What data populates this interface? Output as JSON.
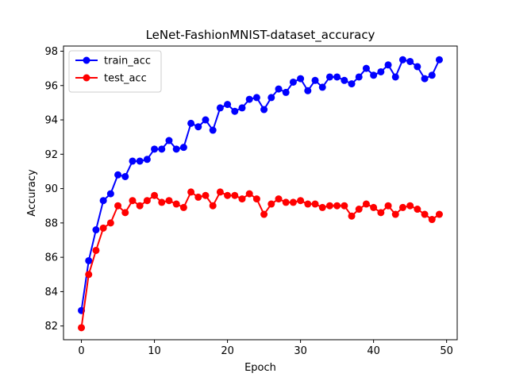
{
  "chart_data": {
    "type": "line",
    "title": "LeNet-FashionMNIST-dataset_accuracy",
    "xlabel": "Epoch",
    "ylabel": "Accuracy",
    "xlim": [
      -2.45,
      51.45
    ],
    "ylim": [
      81.2,
      98.3
    ],
    "xticks": [
      0,
      10,
      20,
      30,
      40,
      50
    ],
    "yticks": [
      82,
      84,
      86,
      88,
      90,
      92,
      94,
      96,
      98
    ],
    "grid": false,
    "legend_position": "upper-left",
    "x": [
      0,
      1,
      2,
      3,
      4,
      5,
      6,
      7,
      8,
      9,
      10,
      11,
      12,
      13,
      14,
      15,
      16,
      17,
      18,
      19,
      20,
      21,
      22,
      23,
      24,
      25,
      26,
      27,
      28,
      29,
      30,
      31,
      32,
      33,
      34,
      35,
      36,
      37,
      38,
      39,
      40,
      41,
      42,
      43,
      44,
      45,
      46,
      47,
      48,
      49
    ],
    "series": [
      {
        "name": "train_acc",
        "color": "#0000ff",
        "marker": "circle",
        "values": [
          82.9,
          85.8,
          87.6,
          89.3,
          89.7,
          90.8,
          90.7,
          91.6,
          91.6,
          91.7,
          92.3,
          92.3,
          92.8,
          92.3,
          92.4,
          93.8,
          93.6,
          94.0,
          93.4,
          94.7,
          94.9,
          94.5,
          94.7,
          95.2,
          95.3,
          94.6,
          95.3,
          95.8,
          95.6,
          96.2,
          96.4,
          95.7,
          96.3,
          95.9,
          96.5,
          96.5,
          96.3,
          96.1,
          96.5,
          97.0,
          96.6,
          96.8,
          97.2,
          96.5,
          97.5,
          97.4,
          97.1,
          96.4,
          96.6,
          97.5
        ]
      },
      {
        "name": "test_acc",
        "color": "#ff0000",
        "marker": "circle",
        "values": [
          81.9,
          85.0,
          86.4,
          87.7,
          88.0,
          89.0,
          88.6,
          89.3,
          89.0,
          89.3,
          89.6,
          89.2,
          89.3,
          89.1,
          88.9,
          89.8,
          89.5,
          89.6,
          89.0,
          89.8,
          89.6,
          89.6,
          89.4,
          89.7,
          89.4,
          88.5,
          89.1,
          89.4,
          89.2,
          89.2,
          89.3,
          89.1,
          89.1,
          88.9,
          89.0,
          89.0,
          89.0,
          88.4,
          88.8,
          89.1,
          88.9,
          88.6,
          89.0,
          88.5,
          88.9,
          89.0,
          88.8,
          88.5,
          88.2,
          88.5
        ]
      }
    ]
  }
}
